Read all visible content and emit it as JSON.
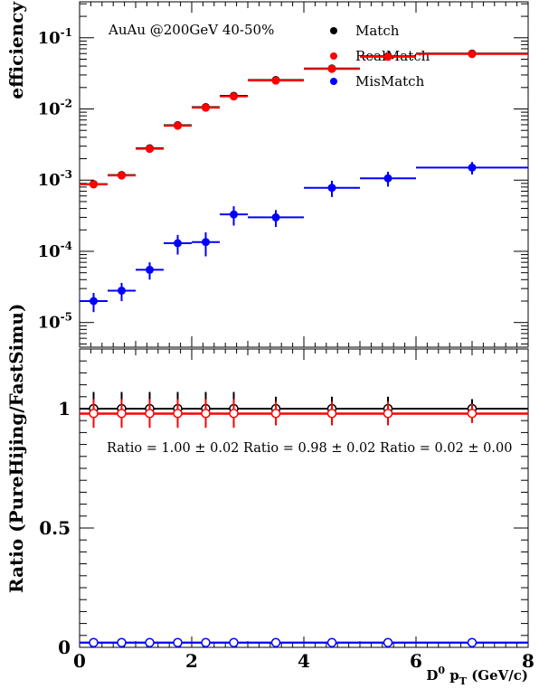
{
  "chart_data": [
    {
      "type": "scatter",
      "ylabel": "efficiency",
      "yscale": "log",
      "ylim": [
        4.5e-06,
        0.32
      ],
      "xlim": [
        0,
        8
      ],
      "annotation": "AuAu @200GeV  40-50%",
      "legend_position": "top-right",
      "yticks": [
        {
          "value": 1e-05,
          "base": "10",
          "exp": "-5"
        },
        {
          "value": 0.0001,
          "base": "10",
          "exp": "-4"
        },
        {
          "value": 0.001,
          "base": "10",
          "exp": "-3"
        },
        {
          "value": 0.01,
          "base": "10",
          "exp": "-2"
        },
        {
          "value": 0.1,
          "base": "10",
          "exp": "-1"
        }
      ],
      "x_bins": [
        [
          0,
          0.5
        ],
        [
          0.5,
          1
        ],
        [
          1,
          1.5
        ],
        [
          1.5,
          2
        ],
        [
          2,
          2.5
        ],
        [
          2.5,
          3
        ],
        [
          3,
          4
        ],
        [
          4,
          5
        ],
        [
          5,
          6
        ],
        [
          6,
          8
        ]
      ],
      "series": [
        {
          "name": "Match",
          "color": "#000000",
          "values": [
            0.00088,
            0.00118,
            0.0028,
            0.0059,
            0.0106,
            0.0153,
            0.0255,
            0.037,
            0.055,
            0.06
          ],
          "errors": [
            5e-05,
            6e-05,
            0.00015,
            0.0003,
            0.0005,
            0.0007,
            0.001,
            0.0015,
            0.002,
            0.002
          ]
        },
        {
          "name": "RealMatch",
          "color": "#ff0000",
          "values": [
            0.00087,
            0.00116,
            0.00275,
            0.0058,
            0.0104,
            0.015,
            0.025,
            0.0365,
            0.054,
            0.059
          ],
          "errors": [
            5e-05,
            6e-05,
            0.00015,
            0.0003,
            0.0005,
            0.0007,
            0.001,
            0.0015,
            0.002,
            0.002
          ]
        },
        {
          "name": "MisMatch",
          "color": "#0000ff",
          "values": [
            2e-05,
            2.8e-05,
            5.5e-05,
            0.00013,
            0.000135,
            0.00033,
            0.0003,
            0.00078,
            0.00106,
            0.0015
          ],
          "errors": [
            6e-06,
            8e-06,
            1.5e-05,
            4e-05,
            5e-05,
            0.0001,
            8e-05,
            0.0002,
            0.00025,
            0.0003
          ]
        }
      ]
    },
    {
      "type": "scatter",
      "ylabel": "Ratio (PureHijing/FastSimu)",
      "xlabel_main": "D",
      "xlabel_sup": "0",
      "xlabel_p": " p",
      "xlabel_sub": "T",
      "xlabel_unit": " (GeV/c)",
      "ylim": [
        0,
        1.25
      ],
      "xlim": [
        0,
        8
      ],
      "xticks": [
        0,
        2,
        4,
        6,
        8
      ],
      "yticks": [
        0,
        0.5,
        1
      ],
      "ratio_text": [
        "Ratio = 1.00 ± 0.02",
        "Ratio = 0.98 ± 0.02",
        "Ratio = 0.02 ± 0.00"
      ],
      "fit_lines": [
        {
          "name": "Match",
          "color": "#000000",
          "value": 1.0
        },
        {
          "name": "RealMatch",
          "color": "#ff0000",
          "value": 0.978
        },
        {
          "name": "MisMatch",
          "color": "#0000ff",
          "value": 0.02
        }
      ],
      "x_bins": [
        [
          0,
          0.5
        ],
        [
          0.5,
          1
        ],
        [
          1,
          1.5
        ],
        [
          1.5,
          2
        ],
        [
          2,
          2.5
        ],
        [
          2.5,
          3
        ],
        [
          3,
          4
        ],
        [
          4,
          5
        ],
        [
          5,
          6
        ],
        [
          6,
          8
        ]
      ],
      "series": [
        {
          "name": "Match",
          "color": "#000000",
          "values": [
            1.0,
            1.0,
            1.0,
            1.0,
            1.0,
            1.0,
            1.0,
            1.0,
            1.0,
            1.0
          ],
          "errors": [
            0.07,
            0.07,
            0.07,
            0.07,
            0.07,
            0.07,
            0.05,
            0.05,
            0.05,
            0.04
          ]
        },
        {
          "name": "RealMatch",
          "color": "#ff0000",
          "values": [
            0.98,
            0.98,
            0.98,
            0.98,
            0.98,
            0.98,
            0.98,
            0.98,
            0.98,
            0.98
          ],
          "errors": [
            0.06,
            0.06,
            0.06,
            0.06,
            0.06,
            0.06,
            0.05,
            0.05,
            0.05,
            0.04
          ]
        },
        {
          "name": "MisMatch",
          "color": "#0000ff",
          "values": [
            0.02,
            0.02,
            0.02,
            0.02,
            0.02,
            0.02,
            0.02,
            0.02,
            0.02,
            0.02
          ],
          "errors": [
            0.005,
            0.005,
            0.005,
            0.005,
            0.005,
            0.005,
            0.005,
            0.005,
            0.005,
            0.005
          ]
        }
      ]
    }
  ]
}
